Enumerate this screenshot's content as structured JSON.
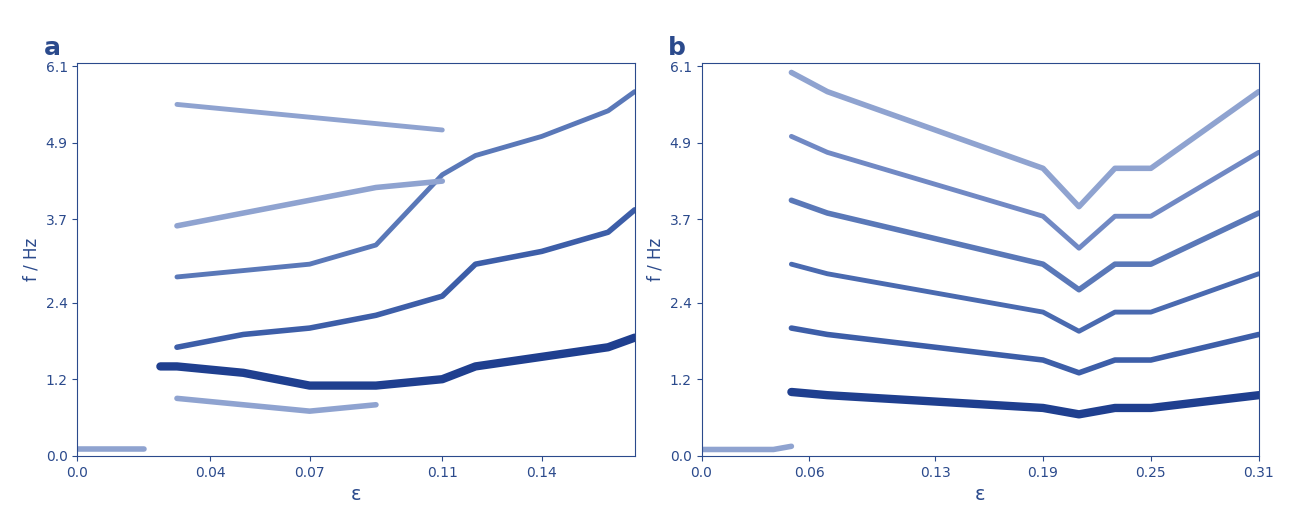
{
  "chart_data": [
    {
      "type": "line",
      "title": "a",
      "x_label": "ε",
      "y_label": "f / Hz",
      "xlim": [
        0.0,
        0.168
      ],
      "xticks": [
        0.0,
        0.04,
        0.07,
        0.11,
        0.14
      ],
      "ylim": [
        0.0,
        6.15
      ],
      "yticks": [
        0.0,
        1.2,
        2.4,
        3.7,
        4.9,
        6.1
      ],
      "grid": false,
      "series": [
        {
          "color": "#8fa3d0",
          "x": [
            0.0,
            0.01,
            0.02
          ],
          "values": [
            0.1,
            0.1,
            0.1
          ]
        },
        {
          "color": "#1f3f8f",
          "x": [
            0.025,
            0.03,
            0.05,
            0.07,
            0.09,
            0.11,
            0.12,
            0.14,
            0.16,
            0.168
          ],
          "values": [
            1.4,
            1.4,
            1.3,
            1.1,
            1.1,
            1.2,
            1.4,
            1.55,
            1.7,
            1.85
          ]
        },
        {
          "color": "#3d5ea8",
          "x": [
            0.03,
            0.05,
            0.07,
            0.09,
            0.11,
            0.12,
            0.14,
            0.16,
            0.168
          ],
          "values": [
            1.7,
            1.9,
            2.0,
            2.2,
            2.5,
            3.0,
            3.2,
            3.5,
            3.85
          ]
        },
        {
          "color": "#5a78b8",
          "x": [
            0.03,
            0.05,
            0.07,
            0.09,
            0.11,
            0.12,
            0.14,
            0.16,
            0.168
          ],
          "values": [
            2.8,
            2.9,
            3.0,
            3.3,
            4.4,
            4.7,
            5.0,
            5.4,
            5.7
          ]
        },
        {
          "color": "#8fa3d0",
          "x": [
            0.03,
            0.05,
            0.07,
            0.09,
            0.11
          ],
          "values": [
            3.6,
            3.8,
            4.0,
            4.2,
            4.3
          ]
        },
        {
          "color": "#8fa3d0",
          "x": [
            0.03,
            0.05,
            0.07,
            0.09,
            0.11
          ],
          "values": [
            5.5,
            5.4,
            5.3,
            5.2,
            5.1
          ]
        },
        {
          "color": "#8fa3d0",
          "x": [
            0.03,
            0.05,
            0.07,
            0.09
          ],
          "values": [
            0.9,
            0.8,
            0.7,
            0.8
          ]
        }
      ]
    },
    {
      "type": "line",
      "title": "b",
      "x_label": "ε",
      "y_label": "f / Hz",
      "xlim": [
        0.0,
        0.31
      ],
      "xticks": [
        0.0,
        0.06,
        0.13,
        0.19,
        0.25,
        0.31
      ],
      "ylim": [
        0.0,
        6.15
      ],
      "yticks": [
        0.0,
        1.2,
        2.4,
        3.7,
        4.9,
        6.1
      ],
      "grid": false,
      "series": [
        {
          "color": "#8fa3d0",
          "x": [
            0.0,
            0.02,
            0.04,
            0.05
          ],
          "values": [
            0.1,
            0.1,
            0.1,
            0.15
          ]
        },
        {
          "color": "#1f3f8f",
          "x": [
            0.05,
            0.07,
            0.1,
            0.13,
            0.16,
            0.19,
            0.21,
            0.23,
            0.25,
            0.28,
            0.31
          ],
          "values": [
            1.0,
            0.95,
            0.9,
            0.85,
            0.8,
            0.75,
            0.65,
            0.75,
            0.75,
            0.85,
            0.95
          ]
        },
        {
          "color": "#3d5ea8",
          "x": [
            0.05,
            0.07,
            0.1,
            0.13,
            0.16,
            0.19,
            0.21,
            0.23,
            0.25,
            0.28,
            0.31
          ],
          "values": [
            2.0,
            1.9,
            1.8,
            1.7,
            1.6,
            1.5,
            1.3,
            1.5,
            1.5,
            1.7,
            1.9
          ]
        },
        {
          "color": "#4a6ab0",
          "x": [
            0.05,
            0.07,
            0.1,
            0.13,
            0.16,
            0.19,
            0.21,
            0.23,
            0.25,
            0.28,
            0.31
          ],
          "values": [
            3.0,
            2.85,
            2.7,
            2.55,
            2.4,
            2.25,
            1.95,
            2.25,
            2.25,
            2.55,
            2.85
          ]
        },
        {
          "color": "#5a78b8",
          "x": [
            0.05,
            0.07,
            0.1,
            0.13,
            0.16,
            0.19,
            0.21,
            0.23,
            0.25,
            0.28,
            0.31
          ],
          "values": [
            4.0,
            3.8,
            3.6,
            3.4,
            3.2,
            3.0,
            2.6,
            3.0,
            3.0,
            3.4,
            3.8
          ]
        },
        {
          "color": "#7189c4",
          "x": [
            0.05,
            0.07,
            0.1,
            0.13,
            0.16,
            0.19,
            0.21,
            0.23,
            0.25,
            0.28,
            0.31
          ],
          "values": [
            5.0,
            4.75,
            4.5,
            4.25,
            4.0,
            3.75,
            3.25,
            3.75,
            3.75,
            4.25,
            4.75
          ]
        },
        {
          "color": "#8fa3d0",
          "x": [
            0.05,
            0.07,
            0.1,
            0.13,
            0.16,
            0.19,
            0.21,
            0.23,
            0.25,
            0.28,
            0.31
          ],
          "values": [
            6.0,
            5.7,
            5.4,
            5.1,
            4.8,
            4.5,
            3.9,
            4.5,
            4.5,
            5.1,
            5.7
          ]
        }
      ]
    }
  ]
}
